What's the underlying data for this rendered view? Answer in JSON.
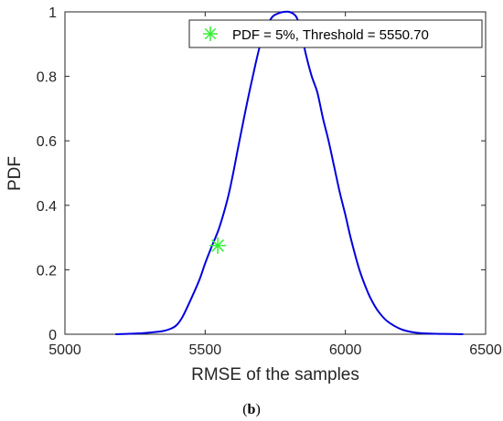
{
  "chart_data": {
    "type": "line",
    "xlabel": "RMSE of the samples",
    "ylabel": "PDF",
    "xlim": [
      5000,
      6500
    ],
    "ylim": [
      0,
      1
    ],
    "x_ticks": [
      5000,
      5500,
      6000,
      6500
    ],
    "x_tick_labels": [
      "5000",
      "5500",
      "6000",
      "6500"
    ],
    "y_ticks": [
      0,
      0.2,
      0.4,
      0.6,
      0.8,
      1
    ],
    "y_tick_labels": [
      "0",
      "0.2",
      "0.4",
      "0.6",
      "0.8",
      "1"
    ],
    "grid": false,
    "legend_position": "top-right",
    "series": [
      {
        "type": "line",
        "color": "#0000e0",
        "x": [
          5180,
          5250,
          5300,
          5350,
          5380,
          5400,
          5420,
          5450,
          5480,
          5500,
          5520,
          5550,
          5580,
          5600,
          5620,
          5650,
          5680,
          5700,
          5720,
          5740,
          5760,
          5780,
          5800,
          5820,
          5830,
          5840,
          5860,
          5880,
          5900,
          5920,
          5940,
          5960,
          5980,
          6000,
          6020,
          6050,
          6080,
          6100,
          6120,
          6150,
          6200,
          6250,
          6300,
          6350,
          6420
        ],
        "y": [
          0.0,
          0.002,
          0.005,
          0.01,
          0.018,
          0.03,
          0.055,
          0.11,
          0.17,
          0.22,
          0.265,
          0.33,
          0.42,
          0.5,
          0.59,
          0.72,
          0.84,
          0.91,
          0.955,
          0.985,
          0.995,
          1.0,
          1.0,
          0.99,
          0.975,
          0.945,
          0.865,
          0.8,
          0.75,
          0.67,
          0.6,
          0.52,
          0.44,
          0.37,
          0.295,
          0.2,
          0.13,
          0.095,
          0.068,
          0.04,
          0.015,
          0.005,
          0.002,
          0.001,
          0.0
        ]
      },
      {
        "type": "scatter",
        "name": "PDF = 5%, Threshold = 5550.70",
        "marker": "asterisk",
        "color": "#33ee33",
        "x": [
          5545
        ],
        "y": [
          0.275
        ]
      }
    ]
  },
  "caption": {
    "open": "(",
    "letter": "b",
    "close": ")"
  }
}
